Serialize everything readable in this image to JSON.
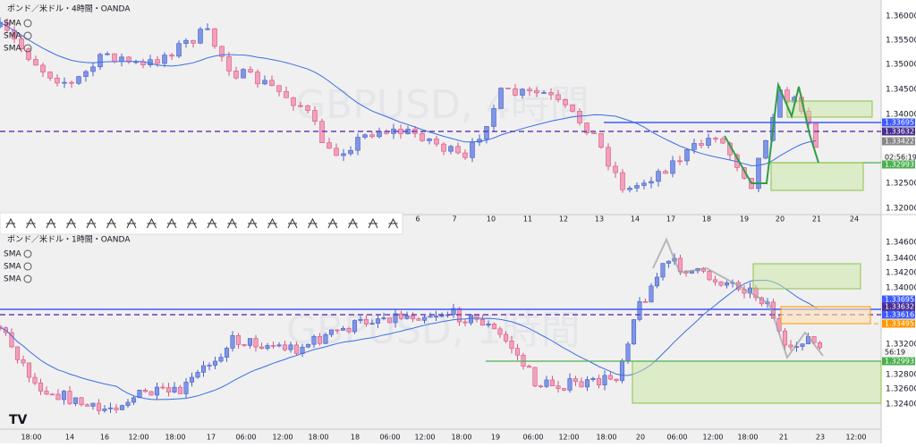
{
  "top": {
    "title": "ポンド／米ドル・4時間・OANDA",
    "indicators": [
      "SMA",
      "SMA",
      "SMA"
    ],
    "watermark": "GBPUSD, 4時間",
    "price_labels": [
      "1.36000",
      "1.35500",
      "1.35000",
      "1.34500",
      "1.34000",
      "1.32500",
      "1.32000"
    ],
    "badges": [
      "1.33695",
      "1.33632",
      "1.33422",
      "02:56:19",
      "1.32993"
    ],
    "time_labels": [
      "6",
      "7",
      "10",
      "11",
      "12",
      "13",
      "14",
      "17",
      "18",
      "19",
      "20",
      "21",
      "24"
    ]
  },
  "bottom": {
    "title": "ポンド／米ドル・1時間・OANDA",
    "indicators": [
      "SMA",
      "SMA",
      "SMA"
    ],
    "watermark": "GBPUSD, 1時間",
    "price_labels": [
      "1.34600",
      "1.34400",
      "1.34200",
      "1.34000",
      "1.33200",
      "1.32800",
      "1.32600",
      "1.32400"
    ],
    "badges": [
      "1.33695",
      "1.33632",
      "1.33616",
      "1.33495",
      "56:19",
      "1.32993"
    ],
    "time_labels": [
      "18:00",
      "14",
      "16",
      "12:00",
      "18:00",
      "17",
      "06:00",
      "12:00",
      "18:00",
      "18",
      "06:00",
      "12:00",
      "18:00",
      "19",
      "06:00",
      "12:00",
      "18:00",
      "20",
      "06:00",
      "12:00",
      "18:00",
      "21",
      "23",
      "12:00"
    ]
  }
}
